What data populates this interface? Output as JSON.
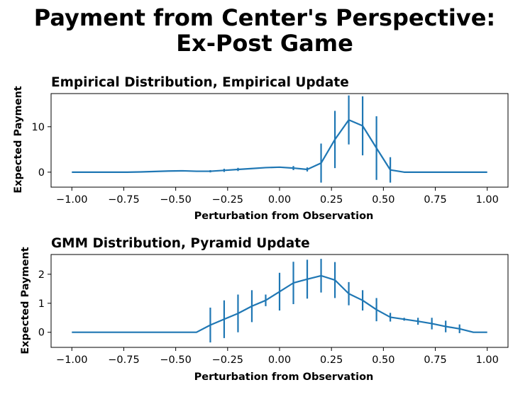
{
  "figure": {
    "title_line1": "Payment from Center's Perspective:",
    "title_line2": "Ex-Post Game"
  },
  "chart_data": [
    {
      "type": "line",
      "title": "Empirical Distribution, Empirical Update",
      "xlabel": "Perturbation from Observation",
      "ylabel": "Expected Payment",
      "xlim": [
        -1.1,
        1.1
      ],
      "ylim": [
        -3.3,
        17.3
      ],
      "xticks": [
        -1.0,
        -0.75,
        -0.5,
        -0.25,
        0.0,
        0.25,
        0.5,
        0.75,
        1.0
      ],
      "xtick_labels": [
        "−1.00",
        "−0.75",
        "−0.50",
        "−0.25",
        "0.00",
        "0.25",
        "0.50",
        "0.75",
        "1.00"
      ],
      "yticks": [
        0,
        10
      ],
      "ytick_labels": [
        "0",
        "10"
      ],
      "color": "#1f77b4",
      "x": [
        -1.0,
        -0.9333,
        -0.8667,
        -0.8,
        -0.7333,
        -0.6667,
        -0.6,
        -0.5333,
        -0.4667,
        -0.4,
        -0.3333,
        -0.2667,
        -0.2,
        -0.1333,
        -0.0667,
        0.0,
        0.0667,
        0.1333,
        0.2,
        0.2667,
        0.3333,
        0.4,
        0.4667,
        0.5333,
        0.6,
        0.6667,
        0.7333,
        0.8,
        0.8667,
        0.9333,
        1.0
      ],
      "y": [
        0,
        0,
        0,
        0,
        0,
        0.05,
        0.15,
        0.25,
        0.3,
        0.2,
        0.2,
        0.4,
        0.6,
        0.8,
        1.0,
        1.1,
        0.9,
        0.6,
        2.0,
        7.2,
        11.5,
        10.2,
        5.3,
        0.5,
        0,
        0,
        0,
        0,
        0,
        0,
        0
      ],
      "yerr": [
        0,
        0,
        0,
        0,
        0,
        0,
        0,
        0,
        0,
        0,
        0.25,
        0.35,
        0.35,
        0,
        0,
        0,
        0.45,
        0.45,
        4.3,
        6.3,
        5.4,
        6.5,
        7.0,
        2.8,
        0,
        0,
        0,
        0,
        0,
        0,
        0
      ]
    },
    {
      "type": "line",
      "title": "GMM Distribution, Pyramid Update",
      "xlabel": "Perturbation from Observation",
      "ylabel": "Expected Payment",
      "xlim": [
        -1.1,
        1.1
      ],
      "ylim": [
        -0.52,
        2.68
      ],
      "xticks": [
        -1.0,
        -0.75,
        -0.5,
        -0.25,
        0.0,
        0.25,
        0.5,
        0.75,
        1.0
      ],
      "xtick_labels": [
        "−1.00",
        "−0.75",
        "−0.50",
        "−0.25",
        "0.00",
        "0.25",
        "0.50",
        "0.75",
        "1.00"
      ],
      "yticks": [
        0,
        1,
        2
      ],
      "ytick_labels": [
        "0",
        "1",
        "2"
      ],
      "color": "#1f77b4",
      "x": [
        -1.0,
        -0.9333,
        -0.8667,
        -0.8,
        -0.7333,
        -0.6667,
        -0.6,
        -0.5333,
        -0.4667,
        -0.4,
        -0.3333,
        -0.2667,
        -0.2,
        -0.1333,
        -0.0667,
        0.0,
        0.0667,
        0.1333,
        0.2,
        0.2667,
        0.3333,
        0.4,
        0.4667,
        0.5333,
        0.6,
        0.6667,
        0.7333,
        0.8,
        0.8667,
        0.9333,
        1.0
      ],
      "y": [
        0,
        0,
        0,
        0,
        0,
        0,
        0,
        0,
        0,
        0,
        0.25,
        0.45,
        0.65,
        0.9,
        1.1,
        1.4,
        1.7,
        1.83,
        1.95,
        1.8,
        1.33,
        1.1,
        0.78,
        0.52,
        0.45,
        0.38,
        0.3,
        0.2,
        0.12,
        0.0,
        0.0
      ],
      "yerr": [
        0,
        0,
        0,
        0,
        0,
        0,
        0,
        0,
        0,
        0,
        0.6,
        0.65,
        0.65,
        0.55,
        0.2,
        0.65,
        0.73,
        0.67,
        0.58,
        0.62,
        0.4,
        0.35,
        0.4,
        0.15,
        0.05,
        0.12,
        0.2,
        0.2,
        0.15,
        0,
        0
      ]
    }
  ]
}
